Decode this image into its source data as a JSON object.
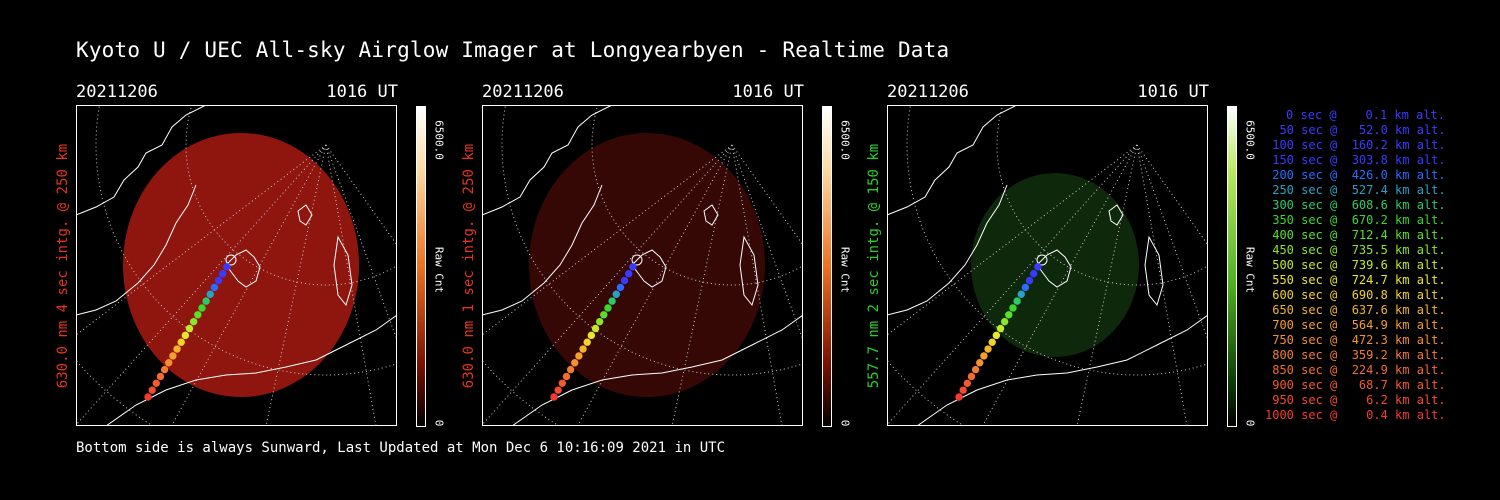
{
  "title": "Kyoto U / UEC All-sky Airglow Imager at Longyearbyen - Realtime Data",
  "footer": "Bottom side is always Sunward, Last Updated at Mon Dec  6 10:16:09 2021 in UTC",
  "colors": {
    "red": "#e8341c",
    "green": "#2ad02a",
    "background": "#000000"
  },
  "panels": [
    {
      "date": "20211206",
      "time": "1016 UT",
      "side_label": "630.0 nm 4 sec intg. @ 250 km",
      "side_color": "#e8341c",
      "cbar_max": "6500.0",
      "cbar_unit": "Raw Cnt",
      "cbar_min": "0",
      "scheme": "red",
      "intensity": 0.75
    },
    {
      "date": "20211206",
      "time": "1016 UT",
      "side_label": "630.0 nm 1 sec intg. @ 250 km",
      "side_color": "#e8341c",
      "cbar_max": "6500.0",
      "cbar_unit": "Raw Cnt",
      "cbar_min": "0",
      "scheme": "red",
      "intensity": 0.28
    },
    {
      "date": "20211206",
      "time": "1016 UT",
      "side_label": "557.7 nm 2 sec intg. @ 150 km",
      "side_color": "#2ad02a",
      "cbar_max": "6500.0",
      "cbar_unit": "Raw Cnt",
      "cbar_min": "0",
      "scheme": "green",
      "intensity": 0.3
    }
  ],
  "trajectory_legend": [
    {
      "text": " 0 sec @    0.1 km alt.",
      "color": "#3a3aff"
    },
    {
      "text": "  50 sec @   52.0 km alt.",
      "color": "#3a3aff"
    },
    {
      "text": " 100 sec @  160.2 km alt.",
      "color": "#3a3aff"
    },
    {
      "text": " 150 sec @  303.8 km alt.",
      "color": "#3a3aff"
    },
    {
      "text": " 200 sec @  426.0 km alt.",
      "color": "#2a6cff"
    },
    {
      "text": " 250 sec @  527.4 km alt.",
      "color": "#2aa0c8"
    },
    {
      "text": " 300 sec @  608.6 km alt.",
      "color": "#2acc6a"
    },
    {
      "text": " 350 sec @  670.2 km alt.",
      "color": "#3ad82a"
    },
    {
      "text": " 400 sec @  712.4 km alt.",
      "color": "#5ae02a"
    },
    {
      "text": " 450 sec @  735.5 km alt.",
      "color": "#8ae62a"
    },
    {
      "text": " 500 sec @  739.6 km alt.",
      "color": "#c2ea2a"
    },
    {
      "text": " 550 sec @  724.7 km alt.",
      "color": "#e8e82a"
    },
    {
      "text": " 600 sec @  690.8 km alt.",
      "color": "#f4d22a"
    },
    {
      "text": " 650 sec @  637.6 km alt.",
      "color": "#f4b42a"
    },
    {
      "text": " 700 sec @  564.9 km alt.",
      "color": "#f4a02a"
    },
    {
      "text": " 750 sec @  472.3 km alt.",
      "color": "#f49030"
    },
    {
      "text": " 800 sec @  359.2 km alt.",
      "color": "#f47c30"
    },
    {
      "text": " 850 sec @  224.9 km alt.",
      "color": "#f46a30"
    },
    {
      "text": " 900 sec @   68.7 km alt.",
      "color": "#f45a30"
    },
    {
      "text": " 950 sec @    6.2 km alt.",
      "color": "#f44a30"
    },
    {
      "text": "1000 sec @    0.4 km alt.",
      "color": "#f43a30"
    }
  ]
}
